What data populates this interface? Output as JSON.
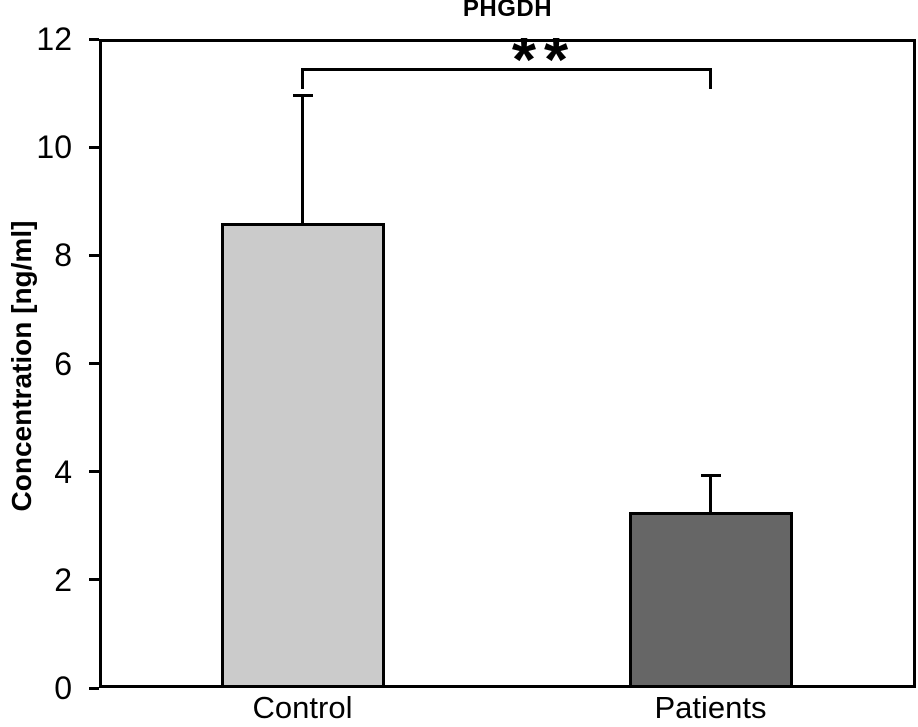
{
  "chart_data": {
    "type": "bar",
    "title": "PHGDH",
    "ylabel": "Concentration [ng/ml]",
    "xlabel": "",
    "categories": [
      "Control",
      "Patients"
    ],
    "values": [
      8.6,
      3.25
    ],
    "error_upper": [
      2.35,
      0.68
    ],
    "yticks": [
      0,
      2,
      4,
      6,
      8,
      10,
      12
    ],
    "ylim": [
      0,
      12
    ],
    "bar_colors": [
      "#cbcbcb",
      "#666666"
    ],
    "bar_border_color": "#000000",
    "axis_color": "#000000",
    "background": "#ffffff",
    "grid": false,
    "legend_position": "none",
    "significance": {
      "label": "**",
      "pair": [
        "Control",
        "Patients"
      ]
    }
  }
}
